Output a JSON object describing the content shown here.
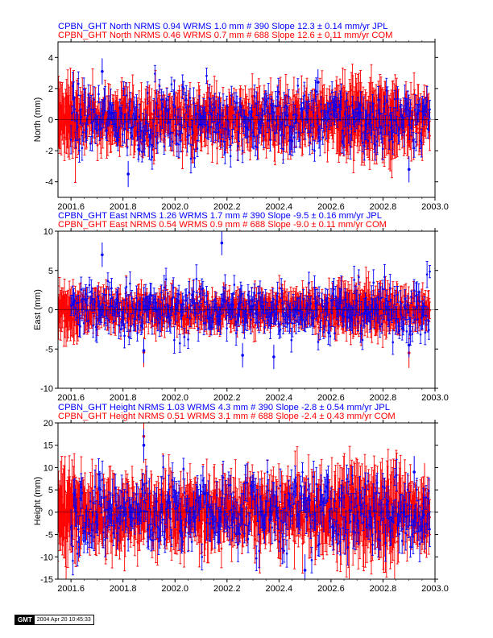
{
  "colors": {
    "jpl": "#0000ff",
    "com": "#ff0000",
    "frame": "#000000"
  },
  "stamp": {
    "logo": "GMT",
    "date": "2004 Apr 20 10:45:33"
  },
  "chart_data": [
    {
      "type": "scatter",
      "title_lines": [
        "CPBN_GHT North NRMS 0.94 WRMS  1.0 mm # 390 Slope   12.3 ±  0.14 mm/yr JPL",
        "CPBN_GHT North NRMS 0.46 WRMS  0.7 mm # 688 Slope   12.6 ±  0.11 mm/yr COM"
      ],
      "ylabel": "North (mm)",
      "xlabel": "",
      "xlim": [
        2001.55,
        2003.0
      ],
      "ylim": [
        -5,
        5
      ],
      "xticks": [
        "2001.6",
        "2001.8",
        "2002.0",
        "2002.2",
        "2002.4",
        "2002.6",
        "2002.8",
        "2003.0"
      ],
      "yticks": [
        "-4",
        "-2",
        "0",
        "2",
        "4"
      ],
      "series": [
        {
          "name": "JPL",
          "n": 390,
          "wrms": 1.0,
          "x_start": 2001.6,
          "x_end": 2002.98,
          "err": 0.7,
          "outliers": [
            [
              2001.82,
              -3.5
            ],
            [
              2001.72,
              3.1
            ],
            [
              2001.86,
              -1.9
            ],
            [
              2002.55,
              2.4
            ],
            [
              2002.9,
              -3.2
            ]
          ]
        },
        {
          "name": "COM",
          "n": 688,
          "wrms": 0.7,
          "x_start": 2001.55,
          "x_end": 2002.98,
          "err": 1.2,
          "outliers": []
        }
      ]
    },
    {
      "type": "scatter",
      "title_lines": [
        "CPBN_GHT East NRMS 1.26 WRMS  1.7 mm # 390 Slope   -9.5 ±  0.16 mm/yr JPL",
        "CPBN_GHT East NRMS 0.54 WRMS  0.9 mm # 688 Slope   -9.0 ±  0.11 mm/yr COM"
      ],
      "ylabel": "East (mm)",
      "xlabel": "",
      "xlim": [
        2001.55,
        2003.0
      ],
      "ylim": [
        -10,
        10
      ],
      "xticks": [
        "2001.6",
        "2001.8",
        "2002.0",
        "2002.2",
        "2002.4",
        "2002.6",
        "2002.8",
        "2003.0"
      ],
      "yticks": [
        "-10",
        "-5",
        "0",
        "5",
        "10"
      ],
      "series": [
        {
          "name": "JPL",
          "n": 390,
          "wrms": 1.7,
          "x_start": 2001.6,
          "x_end": 2002.98,
          "err": 1.3,
          "outliers": [
            [
              2001.72,
              7.0
            ],
            [
              2002.18,
              8.5
            ],
            [
              2002.26,
              -5.8
            ],
            [
              2002.38,
              -6.0
            ],
            [
              2002.9,
              -4.5
            ],
            [
              2001.88,
              -5.2
            ]
          ]
        },
        {
          "name": "COM",
          "n": 688,
          "wrms": 0.9,
          "x_start": 2001.55,
          "x_end": 2002.98,
          "err": 1.6,
          "outliers": [
            [
              2001.88,
              -5.4
            ],
            [
              2002.9,
              -5.5
            ]
          ]
        }
      ]
    },
    {
      "type": "scatter",
      "title_lines": [
        "CPBN_GHT Height NRMS 1.03 WRMS  4.3 mm # 390 Slope   -2.8 ±  0.54 mm/yr JPL",
        "CPBN_GHT Height NRMS 0.51 WRMS  3.1 mm # 688 Slope   -2.4 ±  0.43 mm/yr COM"
      ],
      "ylabel": "Height (mm)",
      "xlabel": "",
      "xlim": [
        2001.55,
        2003.0
      ],
      "ylim": [
        -15,
        20
      ],
      "xticks": [
        "2001.6",
        "2001.8",
        "2002.0",
        "2002.2",
        "2002.4",
        "2002.6",
        "2002.8",
        "2003.0"
      ],
      "yticks": [
        "-15",
        "-10",
        "-5",
        "0",
        "5",
        "10",
        "15",
        "20"
      ],
      "series": [
        {
          "name": "JPL",
          "n": 390,
          "wrms": 4.3,
          "x_start": 2001.6,
          "x_end": 2002.98,
          "err": 3.0,
          "outliers": [
            [
              2001.88,
              15.0
            ],
            [
              2002.5,
              -13.0
            ],
            [
              2002.92,
              9.0
            ]
          ]
        },
        {
          "name": "COM",
          "n": 688,
          "wrms": 3.1,
          "x_start": 2001.55,
          "x_end": 2002.98,
          "err": 5.0,
          "outliers": [
            [
              2001.88,
              17.0
            ],
            [
              2002.96,
              5.0
            ]
          ]
        }
      ]
    }
  ]
}
